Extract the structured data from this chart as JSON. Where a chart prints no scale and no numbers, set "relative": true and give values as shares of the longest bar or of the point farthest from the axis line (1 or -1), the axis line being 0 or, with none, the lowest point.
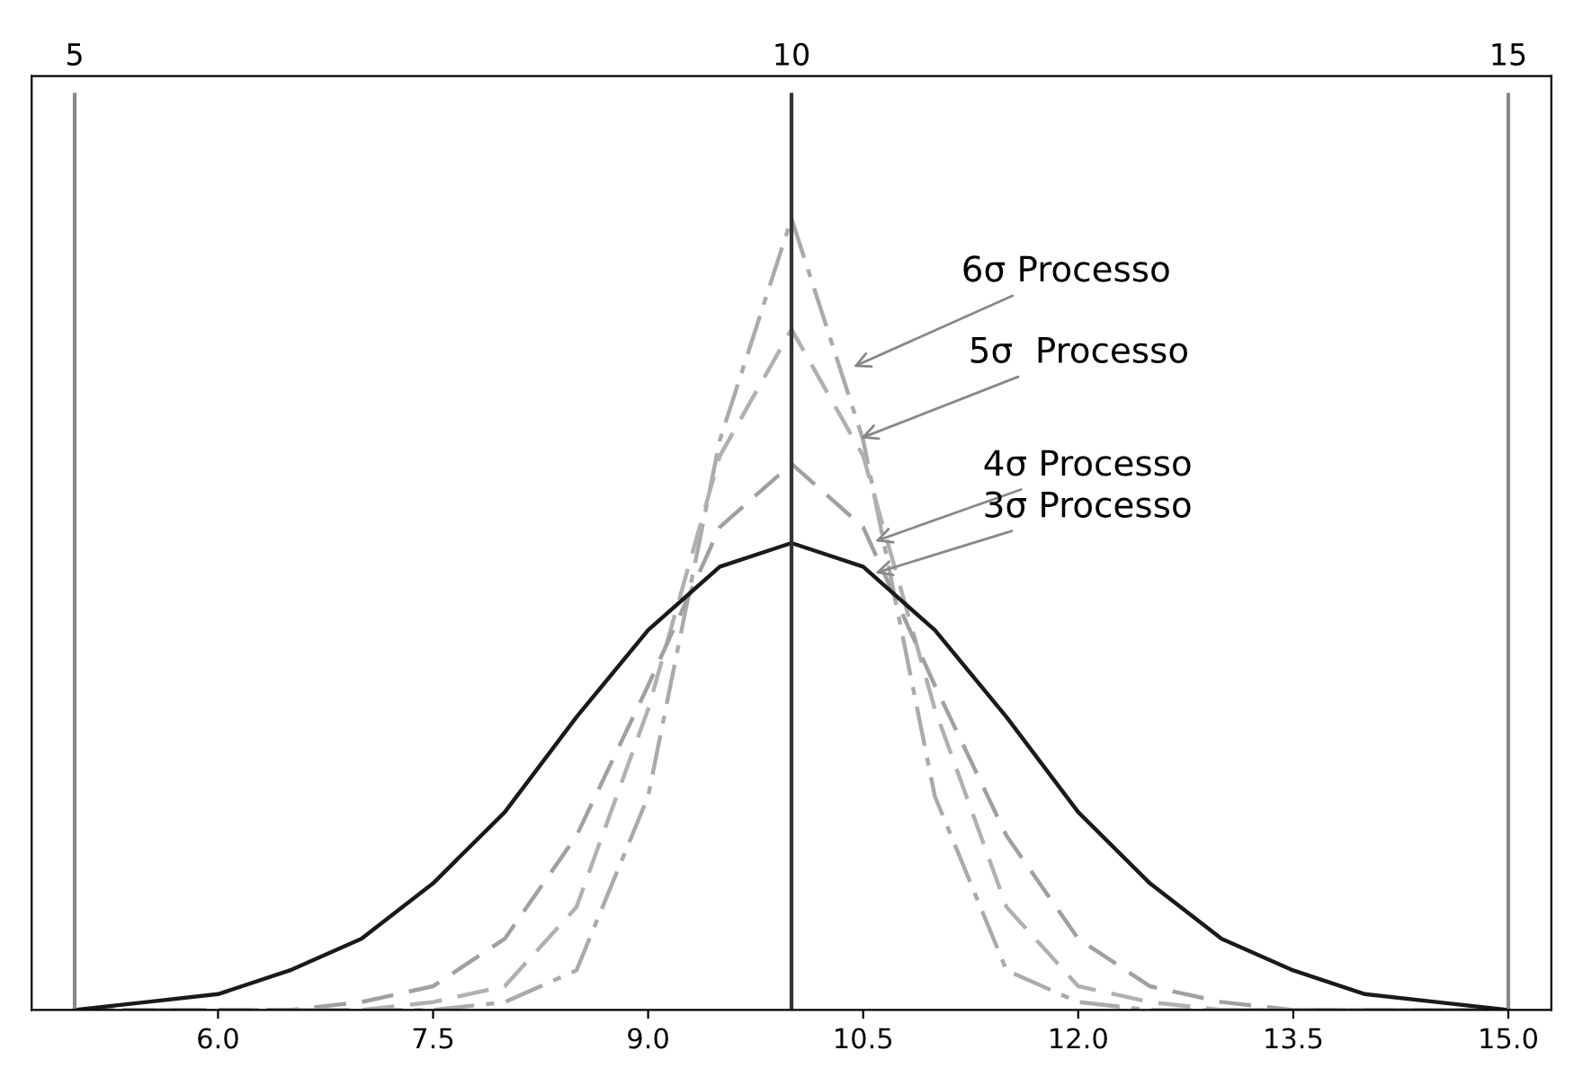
{
  "chart_data": {
    "type": "line",
    "relative": true,
    "x": [
      5,
      5.5,
      6,
      6.5,
      7,
      7.5,
      8,
      8.5,
      9,
      9.5,
      10,
      10.5,
      11,
      11.5,
      12,
      12.5,
      13,
      13.5,
      14,
      14.5,
      15
    ],
    "series": [
      {
        "color": "#aaaaaa",
        "line_style": "dashdot",
        "values": [
          0,
          0,
          0,
          0,
          0,
          0,
          0.01,
          0.05,
          0.27,
          0.72,
          1,
          0.72,
          0.27,
          0.05,
          0.01,
          0,
          0,
          0,
          0,
          0,
          0
        ]
      },
      {
        "color": "#b0b0b0",
        "line_style": "dashed",
        "values": [
          0,
          0,
          0,
          0,
          0,
          0.01,
          0.03,
          0.13,
          0.38,
          0.7,
          0.86,
          0.7,
          0.38,
          0.13,
          0.03,
          0.01,
          0,
          0,
          0,
          0,
          0
        ]
      },
      {
        "color": "#a0a0a0",
        "line_style": "dashed",
        "values": [
          0,
          0,
          0,
          0,
          0.01,
          0.03,
          0.09,
          0.22,
          0.41,
          0.61,
          0.69,
          0.61,
          0.41,
          0.22,
          0.09,
          0.03,
          0.01,
          0,
          0,
          0,
          0
        ]
      },
      {
        "color": "#1a1a1a",
        "line_style": "solid",
        "values": [
          0,
          0.01,
          0.02,
          0.05,
          0.09,
          0.16,
          0.25,
          0.37,
          0.48,
          0.56,
          0.59,
          0.56,
          0.48,
          0.37,
          0.25,
          0.16,
          0.09,
          0.05,
          0.02,
          0.01,
          0
        ]
      }
    ],
    "xlim": [
      4.7,
      15.3
    ],
    "xticks": [
      {
        "value": 6,
        "label": "6.0"
      },
      {
        "value": 7.5,
        "label": "7.5"
      },
      {
        "value": 9,
        "label": "9.0"
      },
      {
        "value": 10.5,
        "label": "10.5"
      },
      {
        "value": 12,
        "label": "12.0"
      },
      {
        "value": 13.5,
        "label": "13.5"
      },
      {
        "value": 15,
        "label": "15.0"
      }
    ],
    "ref_lines": [
      {
        "axis": "x",
        "value": 5,
        "label": "5",
        "color": "#888888"
      },
      {
        "axis": "x",
        "value": 10,
        "label": "10",
        "color": "#333333"
      },
      {
        "axis": "x",
        "value": 15,
        "label": "15",
        "color": "#888888"
      }
    ],
    "annotations": [
      {
        "text": "6σ Processo",
        "x": 10.4,
        "y": 0.81
      },
      {
        "text": "5σ  Processo",
        "x": 10.45,
        "y": 0.72
      },
      {
        "text": "4σ Processo",
        "x": 10.55,
        "y": 0.59
      },
      {
        "text": "3σ Processo",
        "x": 10.55,
        "y": 0.55
      }
    ],
    "grid": false,
    "legend": false
  }
}
